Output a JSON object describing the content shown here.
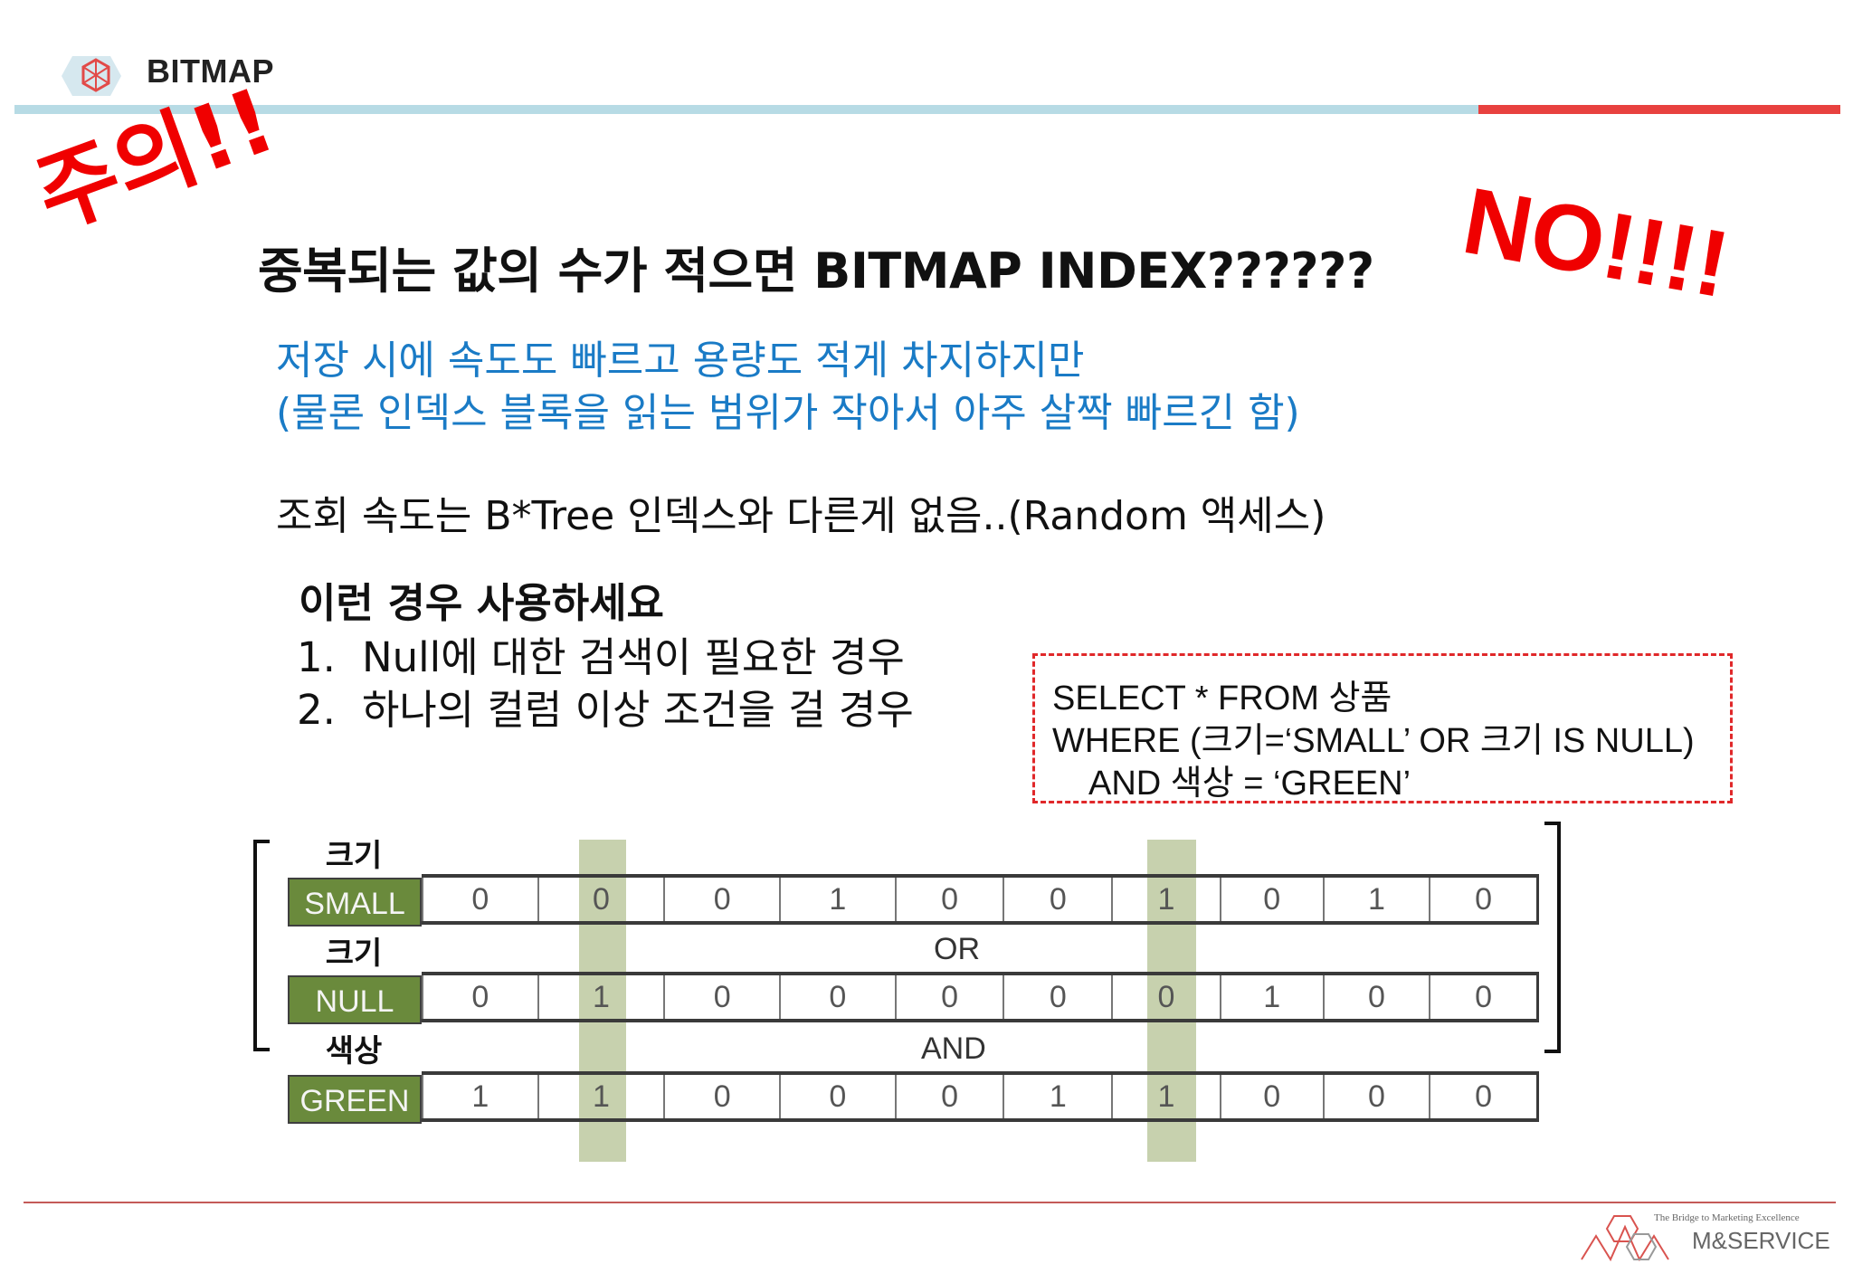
{
  "header": {
    "title": "BITMAP",
    "accent_blue": "#b7dbe5",
    "accent_red": "#e8413f"
  },
  "stamps": {
    "caution": "주의!!",
    "no": "NO!!!!",
    "color": "#f00000"
  },
  "headline": "중복되는 값의 수가 적으면 BITMAP INDEX??????",
  "notes": {
    "line1": "저장 시에 속도도 빠르고 용량도 적게 차지하지만",
    "line2": "(물론 인덱스 블록을 읽는 범위가 작아서 아주 살짝 빠르긴 함)",
    "color": "#1a7bc6"
  },
  "lookup": "조회 속도는 B*Tree 인덱스와 다른게 없음..(Random 액세스)",
  "usage": {
    "heading": "이런 경우 사용하세요",
    "items": [
      {
        "num": "1.",
        "text": "Null에 대한 검색이 필요한 경우"
      },
      {
        "num": "2.",
        "text": "하나의 컬럼 이상 조건을 걸 경우"
      }
    ]
  },
  "sql": {
    "line1": "SELECT * FROM 상품",
    "line2": "WHERE (크기=‘SMALL’ OR 크기 IS NULL)",
    "line3": "AND 색상 = ‘GREEN’"
  },
  "bitmap": {
    "rows": [
      {
        "column": "크기",
        "value": "SMALL",
        "bits": [
          "0",
          "0",
          "0",
          "1",
          "0",
          "0",
          "1",
          "0",
          "1",
          "0"
        ]
      },
      {
        "column": "크기",
        "value": "NULL",
        "bits": [
          "0",
          "1",
          "0",
          "0",
          "0",
          "0",
          "0",
          "1",
          "0",
          "0"
        ]
      },
      {
        "column": "색상",
        "value": "GREEN",
        "bits": [
          "1",
          "1",
          "0",
          "0",
          "0",
          "1",
          "1",
          "0",
          "0",
          "0"
        ]
      }
    ],
    "operators": [
      "OR",
      "AND"
    ],
    "highlight_columns": [
      2,
      7
    ],
    "label_color": "#6a8a3c",
    "highlight_color": "#b9c59a"
  },
  "footer": {
    "tagline": "The Bridge to Marketing Excellence",
    "brand": "M&SERVICE"
  }
}
